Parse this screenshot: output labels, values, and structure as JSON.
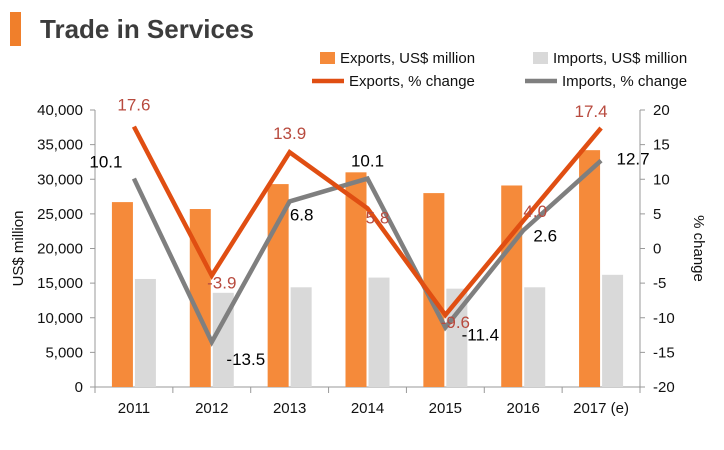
{
  "header": {
    "title": "Trade in Services",
    "accent_color": "#F07F2B"
  },
  "chart_data": {
    "type": "bar+line",
    "title": "Trade in Services",
    "categories": [
      "2011",
      "2012",
      "2013",
      "2014",
      "2015",
      "2016",
      "2017 (e)"
    ],
    "y_left": {
      "label": "US$ million",
      "range": [
        0,
        40000
      ],
      "ticks": [
        "0",
        "5,000",
        "10,000",
        "15,000",
        "20,000",
        "25,000",
        "30,000",
        "35,000",
        "40,000"
      ],
      "tick_values": [
        0,
        5000,
        10000,
        15000,
        20000,
        25000,
        30000,
        35000,
        40000
      ]
    },
    "y_right": {
      "label": "% change",
      "range": [
        -20,
        20
      ],
      "ticks": [
        "-20",
        "-15",
        "-10",
        "-5",
        "0",
        "5",
        "10",
        "15",
        "20"
      ],
      "tick_values": [
        -20,
        -15,
        -10,
        -5,
        0,
        5,
        10,
        15,
        20
      ]
    },
    "bars": [
      {
        "name": "Exports, US$ million",
        "color": "#F58A3A",
        "values": [
          26700,
          25700,
          29300,
          31000,
          28000,
          29100,
          34200
        ]
      },
      {
        "name": "Imports, US$ million",
        "color": "#D9D9D9",
        "values": [
          15600,
          13600,
          14400,
          15800,
          14200,
          14400,
          16200
        ]
      }
    ],
    "lines": [
      {
        "name": "Exports, % change",
        "color": "#E04E12",
        "label_color": "#B84A3E",
        "values": [
          17.6,
          -3.9,
          13.9,
          5.8,
          -9.6,
          4.0,
          17.4
        ],
        "labels": [
          "17.6",
          "-3.9",
          "13.9",
          "5.8",
          "-9.6",
          "4.0",
          "17.4"
        ]
      },
      {
        "name": "Imports, % change",
        "color": "#7F7F7F",
        "label_color": "#000000",
        "values": [
          10.1,
          -13.5,
          6.8,
          10.1,
          -11.4,
          2.6,
          12.7
        ],
        "labels": [
          "10.1",
          "-13.5",
          "6.8",
          "10.1",
          "-11.4",
          "2.6",
          "12.7"
        ]
      }
    ],
    "legend": {
      "placement": "top-right",
      "entries": [
        "Exports, US$ million",
        "Imports, US$ million",
        "Exports, % change",
        "Imports, % change"
      ]
    }
  }
}
